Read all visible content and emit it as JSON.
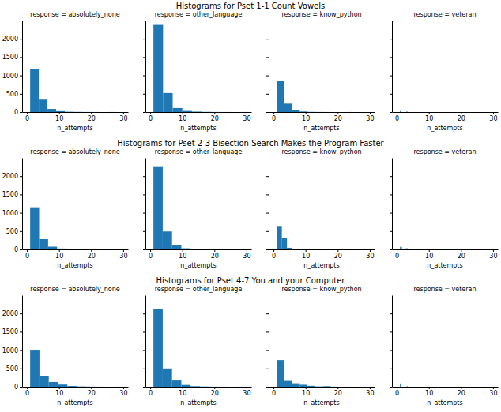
{
  "chart_data": [
    {
      "type": "histogram",
      "title": "Histograms for Pset 1-1 Count Vowels",
      "xlabel": "n_attempts",
      "color": "#1f77b4",
      "xlim": [
        -1.5,
        31.5
      ],
      "xticks": [
        0,
        10,
        20,
        30
      ],
      "ylim": [
        0,
        2500
      ],
      "yticks": [
        0,
        500,
        1000,
        1500,
        2000
      ],
      "series": [
        {
          "name": "response = absolutely_none",
          "bins": [
            1,
            3.7,
            6.4,
            9.1,
            11.8,
            14.5,
            17.2,
            19.9,
            22.6,
            25.3,
            28
          ],
          "values": [
            1170,
            340,
            85,
            25,
            8,
            4,
            2,
            1,
            0,
            1
          ]
        },
        {
          "name": "response = other_language",
          "bins": [
            1,
            4,
            7,
            10,
            13,
            16,
            19,
            22,
            25,
            28,
            31
          ],
          "values": [
            2380,
            520,
            110,
            30,
            12,
            5,
            2,
            1,
            0,
            1
          ]
        },
        {
          "name": "response = know_python",
          "bins": [
            1,
            3.4,
            5.8,
            8.2,
            10.6,
            13,
            15.4,
            17.8,
            20.2,
            22.6,
            25
          ],
          "values": [
            850,
            230,
            55,
            15,
            5,
            2,
            1,
            0,
            0,
            1
          ]
        },
        {
          "name": "response = veteran",
          "bins": [
            1,
            1.4,
            1.8,
            2.2,
            2.6,
            3,
            3.4,
            3.8,
            4.2,
            4.6,
            5
          ],
          "values": [
            28,
            0,
            0,
            0,
            0,
            12,
            0,
            0,
            0,
            4
          ]
        }
      ]
    },
    {
      "type": "histogram",
      "title": "Histograms for Pset 2-3 Bisection Search Makes the Program Faster",
      "xlabel": "n_attempts",
      "color": "#1f77b4",
      "xlim": [
        -1.5,
        31.5
      ],
      "xticks": [
        0,
        10,
        20,
        30
      ],
      "ylim": [
        0,
        2500
      ],
      "yticks": [
        0,
        500,
        1000,
        1500,
        2000
      ],
      "series": [
        {
          "name": "response = absolutely_none",
          "bins": [
            1,
            3.8,
            6.6,
            9.4,
            12.2,
            15,
            17.8,
            20.6,
            23.4,
            26.2,
            29
          ],
          "values": [
            1150,
            280,
            75,
            25,
            8,
            3,
            2,
            1,
            0,
            1
          ]
        },
        {
          "name": "response = other_language",
          "bins": [
            1,
            3.9,
            6.8,
            9.7,
            12.6,
            15.5,
            18.4,
            21.3,
            24.2,
            27.1,
            30
          ],
          "values": [
            2270,
            490,
            110,
            30,
            10,
            4,
            2,
            1,
            0,
            1
          ]
        },
        {
          "name": "response = know_python",
          "bins": [
            1,
            2.6,
            4.2,
            5.8,
            7.4,
            9,
            10.6,
            12.2,
            13.8,
            15.4,
            17
          ],
          "values": [
            640,
            320,
            45,
            15,
            6,
            3,
            1,
            0,
            0,
            1
          ]
        },
        {
          "name": "response = veteran",
          "bins": [
            1,
            1.6,
            2.2,
            2.8,
            3.4,
            4,
            4.6,
            5.2,
            5.8,
            6.4,
            7
          ],
          "values": [
            70,
            0,
            0,
            30,
            0,
            0,
            5,
            0,
            0,
            2
          ]
        }
      ]
    },
    {
      "type": "histogram",
      "title": "Histograms for Pset 4-7 You and your Computer",
      "xlabel": "n_attempts",
      "color": "#1f77b4",
      "xlim": [
        -1.5,
        31.5
      ],
      "xticks": [
        0,
        10,
        20,
        30
      ],
      "ylim": [
        0,
        2500
      ],
      "yticks": [
        0,
        500,
        1000,
        1500,
        2000
      ],
      "series": [
        {
          "name": "response = absolutely_none",
          "bins": [
            1,
            3.9,
            6.8,
            9.7,
            12.6,
            15.5,
            18.4,
            21.3,
            24.2,
            27.1,
            30
          ],
          "values": [
            990,
            300,
            130,
            60,
            20,
            8,
            3,
            1,
            0,
            1
          ]
        },
        {
          "name": "response = other_language",
          "bins": [
            1,
            3.9,
            6.8,
            9.7,
            12.6,
            15.5,
            18.4,
            21.3,
            24.2,
            27.1,
            30
          ],
          "values": [
            2130,
            500,
            170,
            50,
            15,
            6,
            2,
            1,
            0,
            1
          ]
        },
        {
          "name": "response = know_python",
          "bins": [
            1,
            3.4,
            5.8,
            8.2,
            10.6,
            13,
            15.4,
            17.8,
            20.2,
            22.6,
            25
          ],
          "values": [
            730,
            160,
            95,
            55,
            25,
            8,
            15,
            2,
            0,
            1
          ]
        },
        {
          "name": "response = veteran",
          "bins": [
            1,
            1.4,
            1.8,
            2.2,
            2.6,
            3,
            3.4,
            3.8,
            4.2,
            4.6,
            5
          ],
          "values": [
            90,
            0,
            0,
            0,
            0,
            12,
            0,
            0,
            0,
            3
          ]
        }
      ]
    }
  ]
}
